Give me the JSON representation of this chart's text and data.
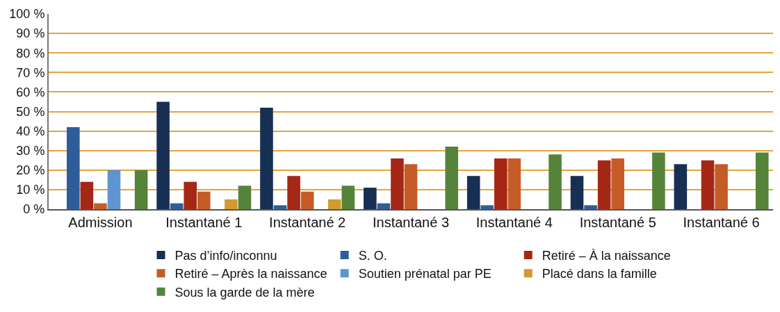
{
  "chart_data": {
    "type": "bar",
    "categories": [
      "Admission",
      "Instantané 1",
      "Instantané 2",
      "Instantané 3",
      "Instantané 4",
      "Instantané 5",
      "Instantané 6"
    ],
    "series": [
      {
        "name": "Pas d’info/inconnu",
        "color": "#172f52",
        "values": [
          0,
          55,
          52,
          11,
          17,
          17,
          23
        ]
      },
      {
        "name": "S. O.",
        "color": "#2f5d9a",
        "values": [
          42,
          3,
          2,
          3,
          2,
          2,
          0
        ]
      },
      {
        "name": "Retiré – À la naissance",
        "color": "#a52716",
        "values": [
          14,
          14,
          17,
          26,
          26,
          25,
          25
        ]
      },
      {
        "name": "Retiré – Après la naissance",
        "color": "#c55c27",
        "values": [
          3,
          9,
          9,
          23,
          26,
          26,
          23
        ]
      },
      {
        "name": "Soutien prénatal par PE",
        "color": "#5e95d0",
        "values": [
          20,
          0,
          0,
          0,
          0,
          0,
          0
        ]
      },
      {
        "name": "Placé dans la famille",
        "color": "#d39a2e",
        "values": [
          0,
          5,
          5,
          0,
          0,
          0,
          0
        ]
      },
      {
        "name": "Sous la garde de la mère",
        "color": "#55833a",
        "values": [
          20,
          12,
          12,
          32,
          28,
          29,
          29
        ]
      }
    ],
    "ylim": [
      0,
      100
    ],
    "yticks": [
      {
        "value": 0,
        "label": "0 %"
      },
      {
        "value": 10,
        "label": "10 %"
      },
      {
        "value": 20,
        "label": "20 %"
      },
      {
        "value": 30,
        "label": "30 %"
      },
      {
        "value": 40,
        "label": "40 %"
      },
      {
        "value": 50,
        "label": "50 %"
      },
      {
        "value": 60,
        "label": "60 %"
      },
      {
        "value": 70,
        "label": "70 %"
      },
      {
        "value": 80,
        "label": "80 %"
      },
      {
        "value": 90,
        "label": "90 %"
      },
      {
        "value": 100,
        "label": "100 %"
      }
    ],
    "grid": "y",
    "legend": "bottom"
  }
}
